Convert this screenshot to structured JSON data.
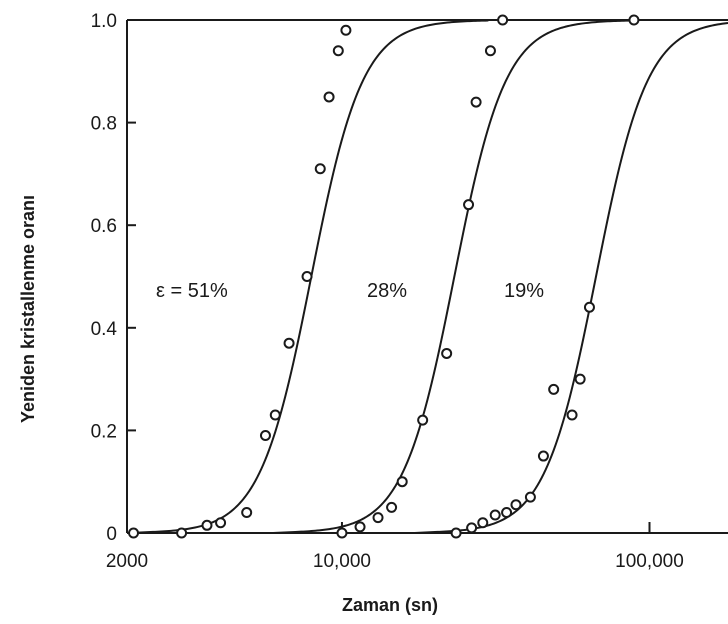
{
  "chart_data": {
    "type": "scatter",
    "title": "",
    "xlabel": "Zaman (sn)",
    "ylabel": "Yeniden kristallenme oranı",
    "x_scale": "log",
    "xlim": [
      2000,
      180000
    ],
    "ylim": [
      0,
      1.0
    ],
    "x_ticks": [
      {
        "value": 2000,
        "label": "2000"
      },
      {
        "value": 10000,
        "label": "10,000"
      },
      {
        "value": 100000,
        "label": "100,000"
      }
    ],
    "y_ticks": [
      {
        "value": 0,
        "label": "0"
      },
      {
        "value": 0.2,
        "label": "0.2"
      },
      {
        "value": 0.4,
        "label": "0.4"
      },
      {
        "value": 0.6,
        "label": "0.6"
      },
      {
        "value": 0.8,
        "label": "0.8"
      },
      {
        "value": 1.0,
        "label": "1.0"
      }
    ],
    "grid": false,
    "legend": "none",
    "series": [
      {
        "name": "ε = 51%",
        "curve": {
          "t50": 7950,
          "n": 5.2
        },
        "points": [
          {
            "x": 2100,
            "y": 0.0
          },
          {
            "x": 3010,
            "y": 0.0
          },
          {
            "x": 3640,
            "y": 0.015
          },
          {
            "x": 4030,
            "y": 0.02
          },
          {
            "x": 4900,
            "y": 0.04
          },
          {
            "x": 5640,
            "y": 0.19
          },
          {
            "x": 6070,
            "y": 0.23
          },
          {
            "x": 6730,
            "y": 0.37
          },
          {
            "x": 7700,
            "y": 0.5
          },
          {
            "x": 8500,
            "y": 0.71
          },
          {
            "x": 9080,
            "y": 0.85
          },
          {
            "x": 9730,
            "y": 0.94
          },
          {
            "x": 10300,
            "y": 0.98
          }
        ]
      },
      {
        "name": "28%",
        "curve": {
          "t50": 23200,
          "n": 5.2
        },
        "points": [
          {
            "x": 10000,
            "y": 0.0
          },
          {
            "x": 11450,
            "y": 0.012
          },
          {
            "x": 13100,
            "y": 0.03
          },
          {
            "x": 14500,
            "y": 0.05
          },
          {
            "x": 15700,
            "y": 0.1
          },
          {
            "x": 18300,
            "y": 0.22
          },
          {
            "x": 21900,
            "y": 0.35
          },
          {
            "x": 25800,
            "y": 0.64
          },
          {
            "x": 27300,
            "y": 0.84
          },
          {
            "x": 30400,
            "y": 0.94
          },
          {
            "x": 33300,
            "y": 1.0
          }
        ]
      },
      {
        "name": "19%",
        "curve": {
          "t50": 67000,
          "n": 5.2
        },
        "points": [
          {
            "x": 23500,
            "y": 0.0
          },
          {
            "x": 26400,
            "y": 0.01
          },
          {
            "x": 28700,
            "y": 0.02
          },
          {
            "x": 31500,
            "y": 0.035
          },
          {
            "x": 34300,
            "y": 0.04
          },
          {
            "x": 36800,
            "y": 0.055
          },
          {
            "x": 41000,
            "y": 0.07
          },
          {
            "x": 45200,
            "y": 0.15
          },
          {
            "x": 48800,
            "y": 0.28
          },
          {
            "x": 56000,
            "y": 0.23
          },
          {
            "x": 59500,
            "y": 0.3
          },
          {
            "x": 63800,
            "y": 0.44
          },
          {
            "x": 89000,
            "y": 1.0
          }
        ]
      }
    ]
  }
}
